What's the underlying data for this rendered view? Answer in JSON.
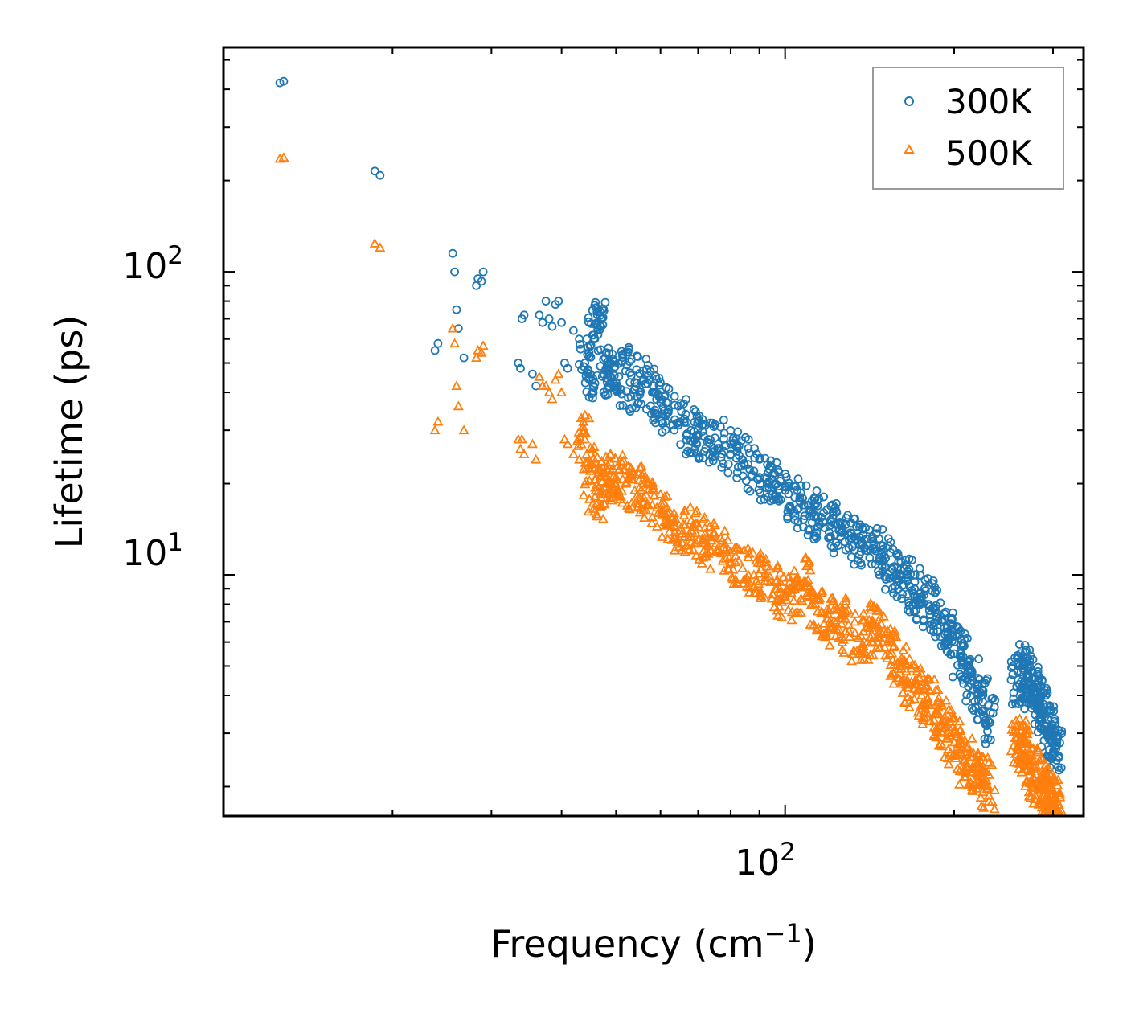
{
  "chart_data": {
    "type": "scatter",
    "title": "",
    "xlabel": "Frequency",
    "xlabel_unit": "cm",
    "xlabel_unit_exp": "−1",
    "ylabel": "Lifetime (ps)",
    "xscale": "log",
    "yscale": "log",
    "xlim": [
      10,
      340
    ],
    "ylim": [
      1.6,
      550
    ],
    "x_tick_labels": [
      {
        "value": 100,
        "base": "10",
        "exp": "2"
      }
    ],
    "y_tick_labels": [
      {
        "value": 10,
        "base": "10",
        "exp": "1"
      },
      {
        "value": 100,
        "base": "10",
        "exp": "2"
      }
    ],
    "legend_position": "top-right",
    "colors": {
      "300K": "#1f77b4",
      "500K": "#ff7f0e"
    },
    "series": [
      {
        "name": "300K",
        "marker": "circle",
        "color": "#1f77b4",
        "x": [
          12.6,
          12.8,
          18.6,
          19.0,
          23.8,
          24.1,
          25.6,
          25.8,
          26.0,
          26.2,
          26.8,
          28.2,
          28.4,
          28.8,
          29.0,
          33.5,
          33.8,
          34.0,
          34.3,
          35.5,
          36.0,
          36.5,
          37.0,
          37.5,
          38.0,
          38.5,
          39.0,
          39.5,
          40.0,
          40.5,
          41.0,
          42.0,
          43.0,
          44.0,
          45.0,
          46.0,
          47.0,
          48.0,
          49.0,
          50.0,
          52.0,
          54.0,
          56.0,
          58.0,
          60.0,
          62.0,
          65.0,
          68.0,
          70.0,
          73.0,
          76.0,
          80.0,
          84.0,
          88.0,
          92.0,
          96.0,
          100.0,
          104.0,
          108.0,
          112.0,
          116.0,
          120.0,
          125.0,
          130.0,
          135.0,
          140.0,
          145.0,
          150.0,
          155.0,
          160.0,
          165.0,
          170.0,
          175.0,
          180.0,
          185.0,
          190.0,
          195.0,
          200.0,
          205.0,
          210.0,
          215.0,
          220.0,
          225.0,
          230.0,
          260.0,
          265.0,
          270.0,
          275.0,
          280.0,
          285.0,
          290.0,
          295.0,
          300.0,
          302.0
        ],
        "y": [
          420,
          425,
          215,
          208,
          55,
          58,
          115,
          100,
          75,
          65,
          52,
          90,
          95,
          93,
          100,
          50,
          48,
          70,
          72,
          46,
          42,
          72,
          68,
          80,
          70,
          66,
          78,
          80,
          68,
          50,
          48,
          64,
          60,
          50,
          46,
          67,
          66,
          48,
          45,
          43,
          47,
          41,
          44,
          40,
          37,
          35,
          32,
          30,
          29,
          28,
          27,
          25,
          24,
          22,
          21,
          20,
          19,
          18,
          17,
          16,
          15.5,
          14.5,
          14,
          13.5,
          13,
          12.5,
          12,
          11.5,
          10.5,
          10,
          9.5,
          9,
          8.5,
          8,
          7.5,
          7,
          6.5,
          6,
          5.5,
          5,
          4.6,
          4.2,
          3.8,
          3.3,
          4.5,
          5.0,
          4.6,
          4.2,
          4.0,
          3.7,
          3.4,
          3.1,
          2.9,
          2.7
        ]
      },
      {
        "name": "500K",
        "marker": "triangle",
        "color": "#ff7f0e",
        "x": [
          12.6,
          12.8,
          18.6,
          19.0,
          23.8,
          24.1,
          25.6,
          25.8,
          26.0,
          26.2,
          26.8,
          28.2,
          28.4,
          28.8,
          29.0,
          33.5,
          33.8,
          34.0,
          34.3,
          35.5,
          36.0,
          36.5,
          37.0,
          37.5,
          38.0,
          38.5,
          39.0,
          39.5,
          40.0,
          40.5,
          41.0,
          42.0,
          43.0,
          44.0,
          45.0,
          46.0,
          47.0,
          48.0,
          49.0,
          50.0,
          52.0,
          54.0,
          56.0,
          58.0,
          60.0,
          62.0,
          65.0,
          68.0,
          70.0,
          73.0,
          76.0,
          80.0,
          84.0,
          88.0,
          92.0,
          96.0,
          100.0,
          104.0,
          108.0,
          112.0,
          116.0,
          120.0,
          125.0,
          130.0,
          135.0,
          140.0,
          145.0,
          150.0,
          155.0,
          160.0,
          165.0,
          170.0,
          175.0,
          180.0,
          185.0,
          190.0,
          195.0,
          200.0,
          205.0,
          210.0,
          215.0,
          220.0,
          225.0,
          230.0,
          260.0,
          265.0,
          270.0,
          275.0,
          280.0,
          285.0,
          290.0,
          295.0,
          300.0,
          302.0
        ],
        "y": [
          236,
          238,
          124,
          120,
          30,
          32,
          65,
          58,
          42,
          36,
          30,
          52,
          55,
          54,
          57,
          28,
          26,
          28,
          25,
          27,
          24,
          45,
          42,
          42,
          40,
          38,
          44,
          46,
          40,
          28,
          27,
          25,
          24,
          28,
          22,
          19,
          18,
          20,
          22,
          21,
          20,
          19,
          18,
          17,
          16,
          15,
          14,
          14,
          13,
          12.5,
          12,
          11,
          10.5,
          10,
          9.5,
          9,
          8.5,
          9,
          9.5,
          8,
          7.5,
          7,
          7.2,
          6.5,
          6.2,
          6,
          6.8,
          6.5,
          5.5,
          5,
          4.5,
          4.2,
          4,
          3.8,
          3.5,
          3.2,
          3.0,
          2.8,
          2.6,
          2.4,
          2.3,
          2.2,
          2.1,
          2.0,
          2.7,
          2.9,
          2.5,
          2.3,
          2.2,
          2.0,
          1.95,
          1.85,
          1.8,
          1.75
        ]
      }
    ]
  }
}
